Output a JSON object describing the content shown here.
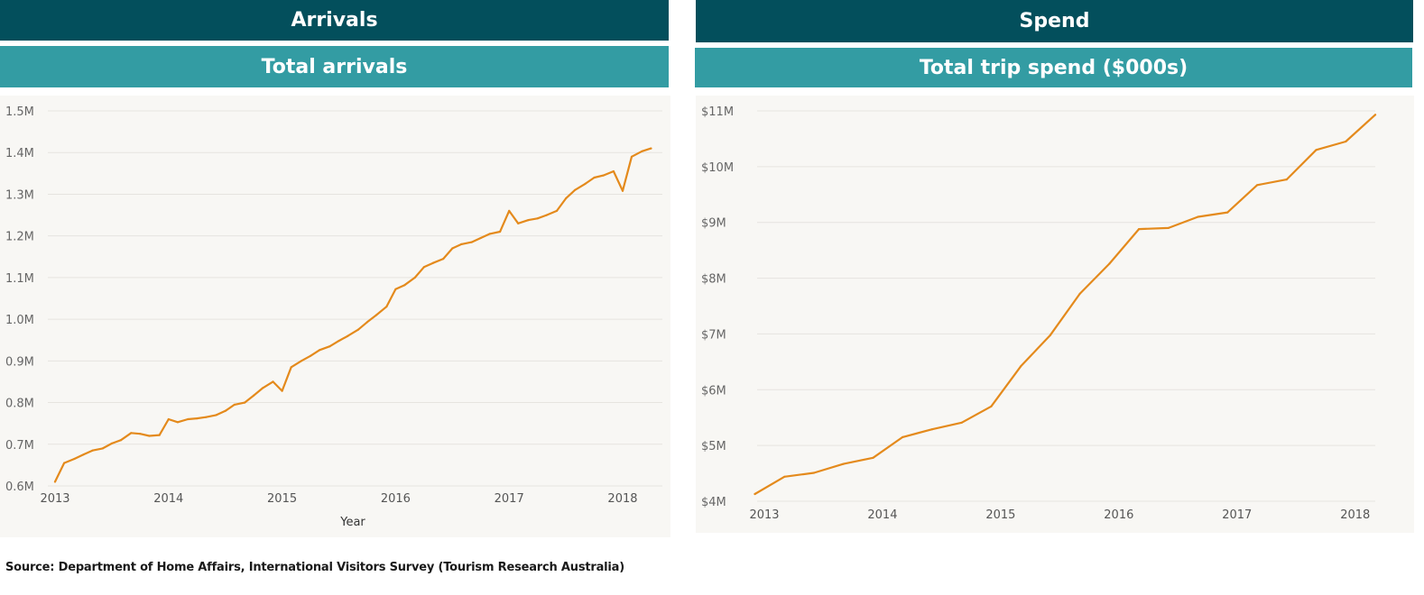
{
  "left": {
    "section_title": "Arrivals",
    "chart_title": "Total arrivals"
  },
  "right": {
    "section_title": "Spend",
    "chart_title": "Total trip spend ($000s)"
  },
  "source": "Source: Department of Home Affairs, International Visitors Survey (Tourism Research Australia)",
  "colors": {
    "dark_header": "#034f5c",
    "teal_header": "#339ca3",
    "line": "#e48a1c",
    "chart_bg": "#f8f7f4",
    "grid": "#e6e4df"
  },
  "chart_data": [
    {
      "type": "line",
      "title": "Total arrivals",
      "xlabel": "Year",
      "ylabel": "",
      "x_ticks": [
        "2013",
        "2014",
        "2015",
        "2016",
        "2017",
        "2018"
      ],
      "y_ticks": [
        {
          "v": 0.6,
          "label": "0.6M"
        },
        {
          "v": 0.7,
          "label": "0.7M"
        },
        {
          "v": 0.8,
          "label": "0.8M"
        },
        {
          "v": 0.9,
          "label": "0.9M"
        },
        {
          "v": 1.0,
          "label": "1.0M"
        },
        {
          "v": 1.1,
          "label": "1.1M"
        },
        {
          "v": 1.2,
          "label": "1.2M"
        },
        {
          "v": 1.3,
          "label": "1.3M"
        },
        {
          "v": 1.4,
          "label": "1.4M"
        },
        {
          "v": 1.5,
          "label": "1.5M"
        }
      ],
      "xlim": [
        2013.0,
        2018.35
      ],
      "ylim": [
        0.6,
        1.5
      ],
      "grid": true,
      "series": [
        {
          "points": [
            [
              2013.0,
              0.61
            ],
            [
              2013.08,
              0.655
            ],
            [
              2013.17,
              0.665
            ],
            [
              2013.25,
              0.675
            ],
            [
              2013.33,
              0.685
            ],
            [
              2013.42,
              0.69
            ],
            [
              2013.5,
              0.702
            ],
            [
              2013.58,
              0.71
            ],
            [
              2013.67,
              0.727
            ],
            [
              2013.75,
              0.725
            ],
            [
              2013.83,
              0.72
            ],
            [
              2013.92,
              0.722
            ],
            [
              2014.0,
              0.76
            ],
            [
              2014.08,
              0.753
            ],
            [
              2014.17,
              0.76
            ],
            [
              2014.25,
              0.762
            ],
            [
              2014.33,
              0.765
            ],
            [
              2014.42,
              0.77
            ],
            [
              2014.5,
              0.78
            ],
            [
              2014.58,
              0.795
            ],
            [
              2014.67,
              0.8
            ],
            [
              2014.75,
              0.817
            ],
            [
              2014.83,
              0.835
            ],
            [
              2014.92,
              0.85
            ],
            [
              2015.0,
              0.828
            ],
            [
              2015.08,
              0.885
            ],
            [
              2015.17,
              0.9
            ],
            [
              2015.25,
              0.912
            ],
            [
              2015.33,
              0.926
            ],
            [
              2015.42,
              0.935
            ],
            [
              2015.5,
              0.948
            ],
            [
              2015.58,
              0.96
            ],
            [
              2015.67,
              0.975
            ],
            [
              2015.75,
              0.993
            ],
            [
              2015.83,
              1.01
            ],
            [
              2015.92,
              1.03
            ],
            [
              2016.0,
              1.072
            ],
            [
              2016.08,
              1.082
            ],
            [
              2016.17,
              1.1
            ],
            [
              2016.25,
              1.125
            ],
            [
              2016.33,
              1.135
            ],
            [
              2016.42,
              1.145
            ],
            [
              2016.5,
              1.17
            ],
            [
              2016.58,
              1.18
            ],
            [
              2016.67,
              1.185
            ],
            [
              2016.75,
              1.195
            ],
            [
              2016.83,
              1.205
            ],
            [
              2016.92,
              1.21
            ],
            [
              2017.0,
              1.26
            ],
            [
              2017.08,
              1.23
            ],
            [
              2017.17,
              1.238
            ],
            [
              2017.25,
              1.242
            ],
            [
              2017.33,
              1.25
            ],
            [
              2017.42,
              1.26
            ],
            [
              2017.5,
              1.29
            ],
            [
              2017.58,
              1.31
            ],
            [
              2017.67,
              1.325
            ],
            [
              2017.75,
              1.34
            ],
            [
              2017.83,
              1.345
            ],
            [
              2017.92,
              1.355
            ],
            [
              2018.0,
              1.308
            ],
            [
              2018.08,
              1.39
            ],
            [
              2018.17,
              1.403
            ],
            [
              2018.25,
              1.41
            ]
          ]
        }
      ]
    },
    {
      "type": "line",
      "title": "Total trip spend ($000s)",
      "xlabel": "",
      "ylabel": "",
      "x_ticks": [
        "2013",
        "2014",
        "2015",
        "2016",
        "2017",
        "2018"
      ],
      "y_ticks": [
        {
          "v": 4,
          "label": "$4M"
        },
        {
          "v": 5,
          "label": "$5M"
        },
        {
          "v": 6,
          "label": "$6M"
        },
        {
          "v": 7,
          "label": "$7M"
        },
        {
          "v": 8,
          "label": "$8M"
        },
        {
          "v": 9,
          "label": "$9M"
        },
        {
          "v": 10,
          "label": "$10M"
        },
        {
          "v": 11,
          "label": "$11M"
        }
      ],
      "xlim": [
        2013.0,
        2018.17
      ],
      "ylim": [
        4,
        11
      ],
      "grid": true,
      "series": [
        {
          "points": [
            [
              2012.92,
              4.13
            ],
            [
              2013.17,
              4.44
            ],
            [
              2013.42,
              4.51
            ],
            [
              2013.67,
              4.67
            ],
            [
              2013.92,
              4.78
            ],
            [
              2014.17,
              5.15
            ],
            [
              2014.42,
              5.29
            ],
            [
              2014.67,
              5.41
            ],
            [
              2014.92,
              5.7
            ],
            [
              2015.17,
              6.42
            ],
            [
              2015.42,
              6.98
            ],
            [
              2015.67,
              7.72
            ],
            [
              2015.92,
              8.26
            ],
            [
              2016.17,
              8.88
            ],
            [
              2016.42,
              8.9
            ],
            [
              2016.67,
              9.1
            ],
            [
              2016.92,
              9.18
            ],
            [
              2017.17,
              9.67
            ],
            [
              2017.42,
              9.77
            ],
            [
              2017.67,
              10.3
            ],
            [
              2017.92,
              10.45
            ],
            [
              2018.17,
              10.93
            ]
          ]
        }
      ]
    }
  ]
}
